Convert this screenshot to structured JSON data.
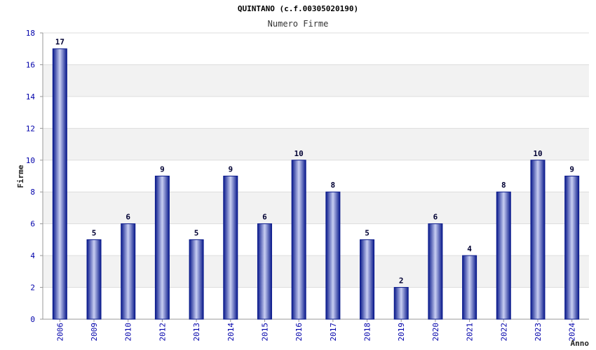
{
  "chart_data": {
    "type": "bar",
    "title": "QUINTANO (c.f.00305020190)",
    "subtitle": "Numero Firme",
    "ylabel": "Firme",
    "xlabel": "Anno",
    "ylim": [
      0,
      18
    ],
    "yticks": [
      0,
      2,
      4,
      6,
      8,
      10,
      12,
      14,
      16,
      18
    ],
    "grid": true,
    "categories": [
      "2006",
      "2009",
      "2010",
      "2012",
      "2013",
      "2014",
      "2015",
      "2016",
      "2017",
      "2018",
      "2019",
      "2020",
      "2021",
      "2022",
      "2023",
      "2024"
    ],
    "values": [
      17,
      5,
      6,
      9,
      5,
      9,
      6,
      10,
      8,
      5,
      2,
      6,
      4,
      8,
      10,
      9
    ],
    "colors": {
      "bar_dark": "#0a1a8c",
      "bar_light": "#c8cef2",
      "band": "#f2f2f2",
      "axis_text": "#0000aa"
    }
  }
}
